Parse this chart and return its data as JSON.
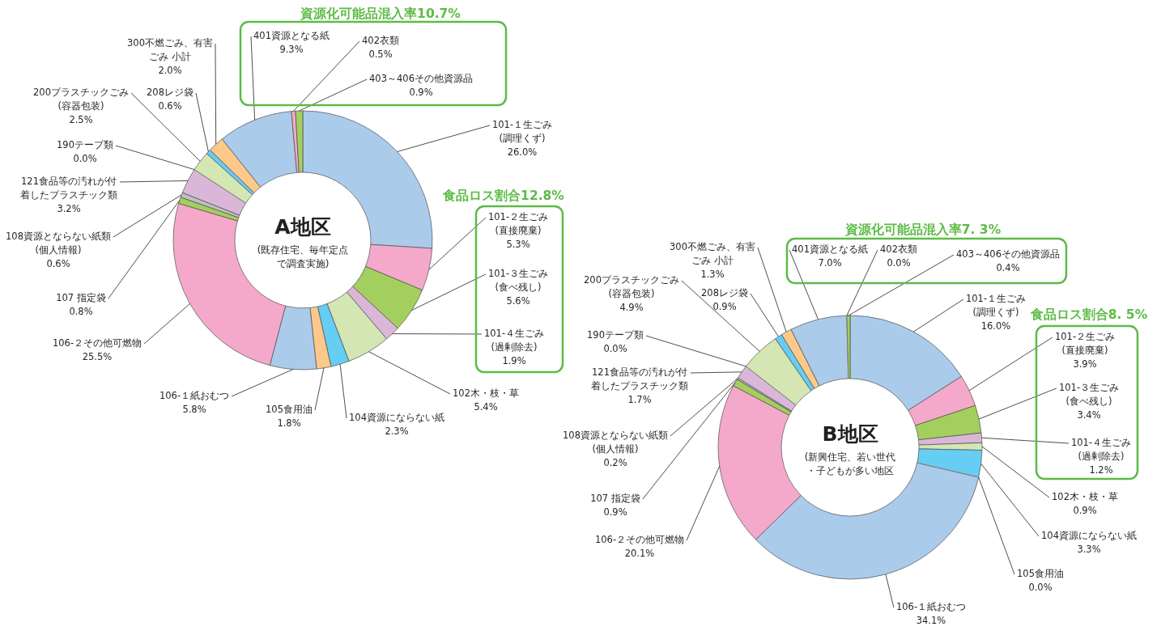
{
  "chart_data": [
    {
      "type": "donut",
      "title": "A地区",
      "subtitle": "(既存住宅、毎年定点で調査実施)",
      "annotations": [
        "資源化可能品混入率10.7%",
        "食品ロス割合12.8%"
      ],
      "categories": [
        "101-１生ごみ\n(調理くず)",
        "101-２生ごみ\n(直接廃棄)",
        "101-３生ごみ\n(食べ残し)",
        "101-４生ごみ\n(過剰除去)",
        "102木・枝・草",
        "104資源にならない紙",
        "105食用油",
        "106-１紙おむつ",
        "106-２その他可燃物",
        "107 指定袋",
        "108資源とならない紙類\n(個人情報)",
        "121食品等の汚れが付着したプラスチック類",
        "190テープ類",
        "200プラスチックごみ\n(容器包装)",
        "208レジ袋",
        "300不燃ごみ、有害ごみ 小計",
        "401資源となる紙",
        "402衣類",
        "403～406その他資源品"
      ],
      "values": [
        26.0,
        5.3,
        5.6,
        1.9,
        5.4,
        2.3,
        1.8,
        5.8,
        25.5,
        0.8,
        0.6,
        3.2,
        0.0,
        2.5,
        0.6,
        2.0,
        9.3,
        0.5,
        0.9
      ],
      "value_labels": [
        "26.0%",
        "5.3%",
        "5.6%",
        "1.9%",
        "5.4%",
        "2.3%",
        "1.8%",
        "5.8%",
        "25.5%",
        "0.8%",
        "0.6%",
        "3.2%",
        "0.0%",
        "2.5%",
        "0.6%",
        "2.0%",
        "9.3%",
        "0.5%",
        "0.9%"
      ],
      "colors": [
        "#abcbeb",
        "#f4a9ca",
        "#a3cf5f",
        "#dab7d8",
        "#d3e6b4",
        "#66cdf3",
        "#fcc98b",
        "#abcbeb",
        "#f4a9ca",
        "#a3cf5f",
        "#bfbfbf",
        "#dab7d8",
        "#d3e6b4",
        "#d3e6b4",
        "#66cdf3",
        "#fcc98b",
        "#abcbeb",
        "#f4a9ca",
        "#a3cf5f"
      ]
    },
    {
      "type": "donut",
      "title": "B地区",
      "subtitle": "(新興住宅、若い世代・子どもが多い地区",
      "annotations": [
        "資源化可能品混入率7. 3%",
        "食品ロス割合8. 5%"
      ],
      "categories": [
        "101-１生ごみ\n(調理くず)",
        "101-２生ごみ\n(直接廃棄)",
        "101-３生ごみ\n(食べ残し)",
        "101-４生ごみ\n(過剰除去)",
        "102木・枝・草",
        "104資源にならない紙",
        "105食用油",
        "106-１紙おむつ",
        "106-２その他可燃物",
        "107 指定袋",
        "108資源とならない紙類\n(個人情報)",
        "121食品等の汚れが付着したプラスチック類",
        "190テープ類",
        "200プラスチックごみ\n(容器包装)",
        "208レジ袋",
        "300不燃ごみ、有害ごみ 小計",
        "401資源となる紙",
        "402衣類",
        "403～406その他資源品"
      ],
      "values": [
        16.0,
        3.9,
        3.4,
        1.2,
        0.9,
        3.3,
        0.0,
        34.1,
        20.1,
        0.9,
        0.2,
        1.7,
        0.0,
        4.9,
        0.9,
        1.3,
        7.0,
        0.0,
        0.4
      ],
      "value_labels": [
        "16.0%",
        "3.9%",
        "3.4%",
        "1.2%",
        "0.9%",
        "3.3%",
        "0.0%",
        "34.1%",
        "20.1%",
        "0.9%",
        "0.2%",
        "1.7%",
        "0.0%",
        "4.9%",
        "0.9%",
        "1.3%",
        "7.0%",
        "0.0%",
        "0.4%"
      ],
      "colors": [
        "#abcbeb",
        "#f4a9ca",
        "#a3cf5f",
        "#dab7d8",
        "#d3e6b4",
        "#66cdf3",
        "#fcc98b",
        "#abcbeb",
        "#f4a9ca",
        "#a3cf5f",
        "#bfbfbf",
        "#dab7d8",
        "#d3e6b4",
        "#d3e6b4",
        "#66cdf3",
        "#fcc98b",
        "#abcbeb",
        "#f4a9ca",
        "#a3cf5f"
      ]
    }
  ]
}
